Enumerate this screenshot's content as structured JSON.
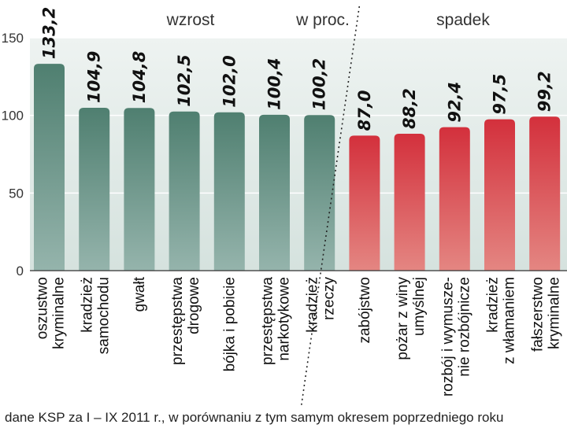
{
  "chart_data": {
    "type": "bar",
    "title": "w proc.",
    "groups": [
      {
        "name": "wzrost",
        "color_top": "#4f7f70",
        "color_bottom": "#95b4ac"
      },
      {
        "name": "spadek",
        "color_top": "#d3303c",
        "color_bottom": "#e48682"
      }
    ],
    "categories": [
      [
        "oszustwo",
        "kryminalne"
      ],
      [
        "kradzież",
        "samochodu"
      ],
      [
        "gwałt"
      ],
      [
        "przestępstwa",
        "drogowe"
      ],
      [
        "bójka i pobicie"
      ],
      [
        "przestępstwa",
        "narkotykowe"
      ],
      [
        "kradzież",
        "rzeczy"
      ],
      [
        "zabójstwo"
      ],
      [
        "pożar z winy",
        "umyślnej"
      ],
      [
        "rozbój i wymusze-",
        "nie rozbójnicze"
      ],
      [
        "kradzież",
        "z włamaniem"
      ],
      [
        "fałszerstwo",
        "kryminalne"
      ]
    ],
    "values": [
      133.2,
      104.9,
      104.8,
      102.5,
      102.0,
      100.4,
      100.2,
      87.0,
      88.2,
      92.4,
      97.5,
      99.2
    ],
    "value_labels": [
      "133,2",
      "104,9",
      "104,8",
      "102,5",
      "102,0",
      "100,4",
      "100,2",
      "87,0",
      "88,2",
      "92,4",
      "97,5",
      "99,2"
    ],
    "group_of": [
      0,
      0,
      0,
      0,
      0,
      0,
      0,
      1,
      1,
      1,
      1,
      1
    ],
    "ylim": [
      0,
      150
    ],
    "yticks": [
      0,
      50,
      100,
      150
    ],
    "grid": true,
    "divider_after_index": 6
  },
  "footer": "dane KSP za I – IX 2011 r., w porównaniu z tym samym okresem poprzedniego roku"
}
